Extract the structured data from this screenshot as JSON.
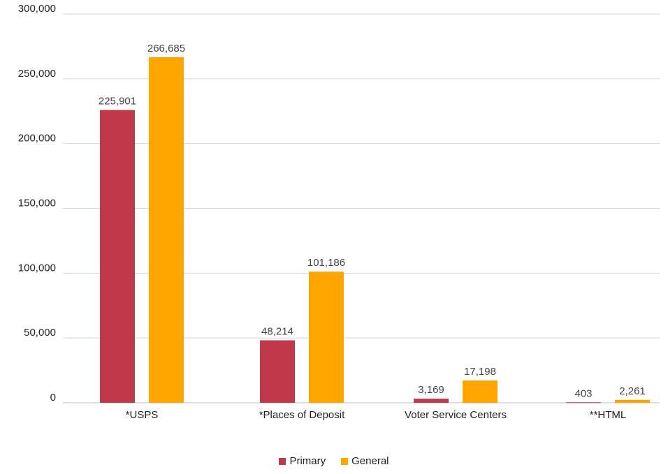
{
  "chart_data": {
    "type": "bar",
    "categories": [
      "*USPS",
      "*Places of Deposit",
      "Voter Service Centers",
      "**HTML"
    ],
    "series": [
      {
        "name": "Primary",
        "color": "#c0394a",
        "values": [
          225901,
          48214,
          3169,
          403
        ],
        "labels": [
          "225,901",
          "48,214",
          "3,169",
          "403"
        ]
      },
      {
        "name": "General",
        "color": "#ffa500",
        "values": [
          266685,
          101186,
          17198,
          2261
        ],
        "labels": [
          "266,685",
          "101,186",
          "17,198",
          "2,261"
        ]
      }
    ],
    "ylim": [
      0,
      300000
    ],
    "yticks": [
      0,
      50000,
      100000,
      150000,
      200000,
      250000,
      300000
    ],
    "ytick_labels": [
      "0",
      "50,000",
      "100,000",
      "150,000",
      "200,000",
      "250,000",
      "300,000"
    ],
    "grid": true,
    "legend_position": "bottom"
  }
}
